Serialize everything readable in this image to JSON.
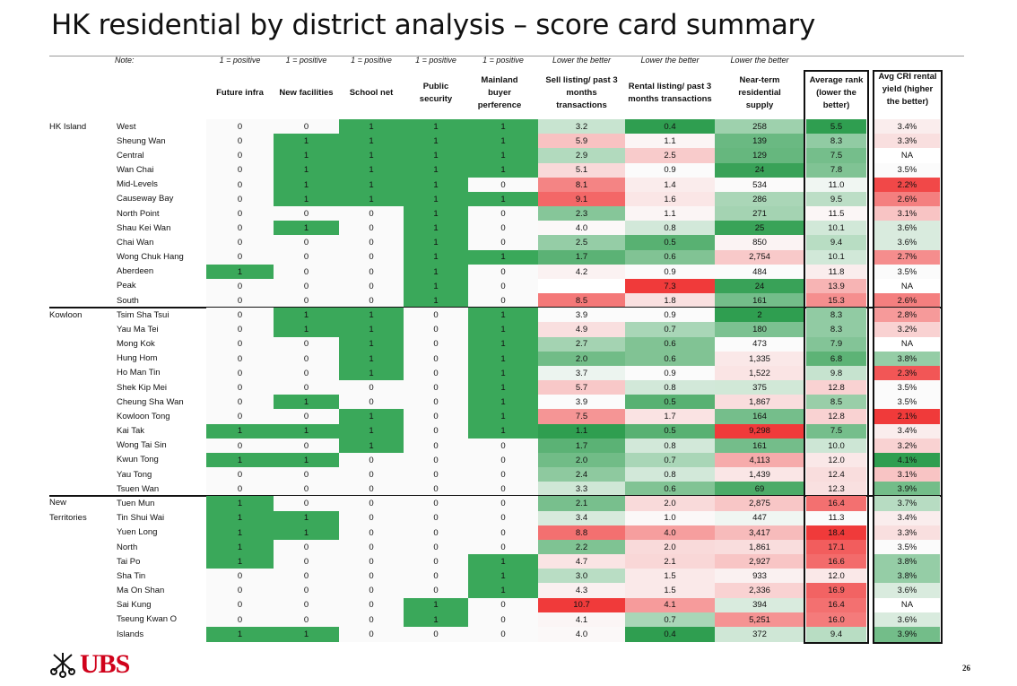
{
  "title": "HK residential by district analysis – score card summary",
  "notes": {
    "label": "Note:",
    "future_infra": "1 = positive",
    "new_facilities": "1 = positive",
    "school_net": "1 = positive",
    "public_security": "1 = positive",
    "mainland_buyer": "1 = positive",
    "sell_listing": "Lower the better",
    "rental_listing": "Lower the better",
    "supply": "Lower the better"
  },
  "headers": {
    "future_infra": "Future infra",
    "new_facilities": "New facilities",
    "school_net": "School net",
    "public_security": "Public security",
    "mainland_buyer": "Mainland buyer perference",
    "sell_listing": "Sell listing/ past 3 months transactions",
    "rental_listing": "Rental listing/ past 3 months transactions",
    "supply": "Near-term residential supply",
    "avg_rank": "Average rank (lower the better)",
    "yield": "Avg CRI rental yield (higher the better)"
  },
  "colors": {
    "binary_positive": "#3aa85a",
    "heat_green": "#2f9e50",
    "heat_white": "#fbfbfb",
    "heat_red": "#f03a3a",
    "logo_red": "#d0021b"
  },
  "groups": [
    {
      "region": "HK Island",
      "rows": [
        [
          "West",
          0,
          0,
          1,
          1,
          1,
          "3.2",
          "0.4",
          "258",
          "5.5",
          "3.4%"
        ],
        [
          "Sheung Wan",
          0,
          1,
          1,
          1,
          1,
          "5.9",
          "1.1",
          "139",
          "8.3",
          "3.3%"
        ],
        [
          "Central",
          0,
          1,
          1,
          1,
          1,
          "2.9",
          "2.5",
          "129",
          "7.5",
          "NA"
        ],
        [
          "Wan Chai",
          0,
          1,
          1,
          1,
          1,
          "5.1",
          "0.9",
          "24",
          "7.8",
          "3.5%"
        ],
        [
          "Mid-Levels",
          0,
          1,
          1,
          1,
          0,
          "8.1",
          "1.4",
          "534",
          "11.0",
          "2.2%"
        ],
        [
          "Causeway Bay",
          0,
          1,
          1,
          1,
          1,
          "9.1",
          "1.6",
          "286",
          "9.5",
          "2.6%"
        ],
        [
          "North Point",
          0,
          0,
          0,
          1,
          0,
          "2.3",
          "1.1",
          "271",
          "11.5",
          "3.1%"
        ],
        [
          "Shau Kei Wan",
          0,
          1,
          0,
          1,
          0,
          "4.0",
          "0.8",
          "25",
          "10.1",
          "3.6%"
        ],
        [
          "Chai Wan",
          0,
          0,
          0,
          1,
          0,
          "2.5",
          "0.5",
          "850",
          "9.4",
          "3.6%"
        ],
        [
          "Wong Chuk Hang",
          0,
          0,
          0,
          1,
          1,
          "1.7",
          "0.6",
          "2,754",
          "10.1",
          "2.7%"
        ],
        [
          "Aberdeen",
          1,
          0,
          0,
          1,
          0,
          "4.2",
          "0.9",
          "484",
          "11.8",
          "3.5%"
        ],
        [
          "Peak",
          0,
          0,
          0,
          1,
          0,
          "",
          "7.3",
          "24",
          "13.9",
          "NA"
        ],
        [
          "South",
          0,
          0,
          0,
          1,
          0,
          "8.5",
          "1.8",
          "161",
          "15.3",
          "2.6%"
        ]
      ]
    },
    {
      "region": "Kowloon",
      "rows": [
        [
          "Tsim Sha Tsui",
          0,
          1,
          1,
          0,
          1,
          "3.9",
          "0.9",
          "2",
          "8.3",
          "2.8%"
        ],
        [
          "Yau Ma Tei",
          0,
          1,
          1,
          0,
          1,
          "4.9",
          "0.7",
          "180",
          "8.3",
          "3.2%"
        ],
        [
          "Mong Kok",
          0,
          0,
          1,
          0,
          1,
          "2.7",
          "0.6",
          "473",
          "7.9",
          "NA"
        ],
        [
          "Hung Hom",
          0,
          0,
          1,
          0,
          1,
          "2.0",
          "0.6",
          "1,335",
          "6.8",
          "3.8%"
        ],
        [
          "Ho Man Tin",
          0,
          0,
          1,
          0,
          1,
          "3.7",
          "0.9",
          "1,522",
          "9.8",
          "2.3%"
        ],
        [
          "Shek Kip Mei",
          0,
          0,
          0,
          0,
          1,
          "5.7",
          "0.8",
          "375",
          "12.8",
          "3.5%"
        ],
        [
          "Cheung Sha Wan",
          0,
          1,
          0,
          0,
          1,
          "3.9",
          "0.5",
          "1,867",
          "8.5",
          "3.5%"
        ],
        [
          "Kowloon Tong",
          0,
          0,
          1,
          0,
          1,
          "7.5",
          "1.7",
          "164",
          "12.8",
          "2.1%"
        ],
        [
          "Kai Tak",
          1,
          1,
          1,
          0,
          1,
          "1.1",
          "0.5",
          "9,298",
          "7.5",
          "3.4%"
        ],
        [
          "Wong Tai Sin",
          0,
          0,
          1,
          0,
          0,
          "1.7",
          "0.8",
          "161",
          "10.0",
          "3.2%"
        ],
        [
          "Kwun Tong",
          1,
          1,
          0,
          0,
          0,
          "2.0",
          "0.7",
          "4,113",
          "12.0",
          "4.1%"
        ],
        [
          "Yau Tong",
          0,
          0,
          0,
          0,
          0,
          "2.4",
          "0.8",
          "1,439",
          "12.4",
          "3.1%"
        ],
        [
          "Tsuen Wan",
          0,
          0,
          0,
          0,
          0,
          "3.3",
          "0.6",
          "69",
          "12.3",
          "3.9%"
        ]
      ]
    },
    {
      "region": "New Territories",
      "rows": [
        [
          "Tuen Mun",
          1,
          0,
          0,
          0,
          0,
          "2.1",
          "2.0",
          "2,875",
          "16.4",
          "3.7%"
        ],
        [
          "Tin Shui Wai",
          1,
          1,
          0,
          0,
          0,
          "3.4",
          "1.0",
          "447",
          "11.3",
          "3.4%"
        ],
        [
          "Yuen Long",
          1,
          1,
          0,
          0,
          0,
          "8.8",
          "4.0",
          "3,417",
          "18.4",
          "3.3%"
        ],
        [
          "North",
          1,
          0,
          0,
          0,
          0,
          "2.2",
          "2.0",
          "1,861",
          "17.1",
          "3.5%"
        ],
        [
          "Tai Po",
          1,
          0,
          0,
          0,
          1,
          "4.7",
          "2.1",
          "2,927",
          "16.6",
          "3.8%"
        ],
        [
          "Sha Tin",
          0,
          0,
          0,
          0,
          1,
          "3.0",
          "1.5",
          "933",
          "12.0",
          "3.8%"
        ],
        [
          "Ma On Shan",
          0,
          0,
          0,
          0,
          1,
          "4.3",
          "1.5",
          "2,336",
          "16.9",
          "3.6%"
        ],
        [
          "Sai Kung",
          0,
          0,
          0,
          1,
          0,
          "10.7",
          "4.1",
          "394",
          "16.4",
          "NA"
        ],
        [
          "Tseung Kwan O",
          0,
          0,
          0,
          1,
          0,
          "4.1",
          "0.7",
          "5,251",
          "16.0",
          "3.6%"
        ],
        [
          "Islands",
          1,
          1,
          0,
          0,
          0,
          "4.0",
          "0.4",
          "372",
          "9.4",
          "3.9%"
        ]
      ]
    }
  ],
  "footer": {
    "logo": "UBS",
    "page_number": "26"
  }
}
